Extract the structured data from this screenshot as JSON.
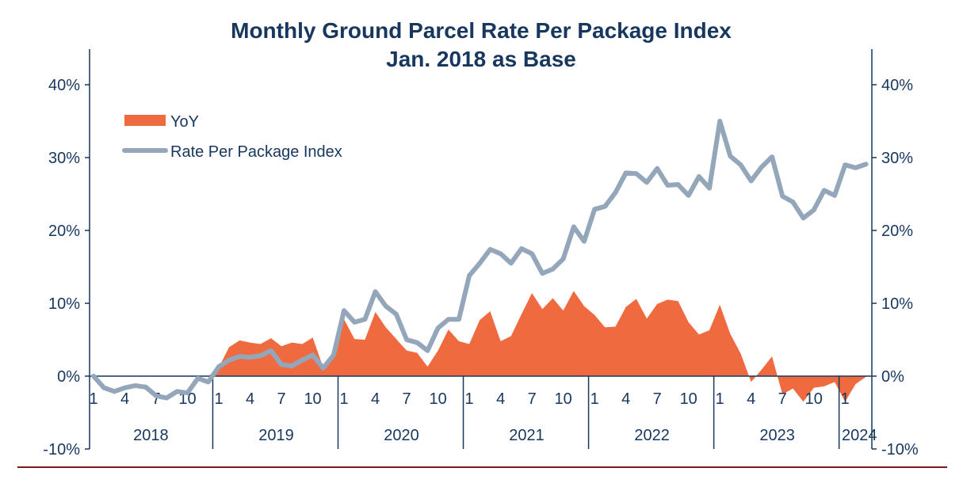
{
  "chart_data": {
    "type": "area+line",
    "title": "Monthly Ground Parcel Rate Per Package Index",
    "subtitle": "Jan. 2018 as Base",
    "ylim": [
      -10,
      40
    ],
    "yticks": [
      "-10%",
      "0%",
      "10%",
      "20%",
      "30%",
      "40%"
    ],
    "ytick_values": [
      -10,
      0,
      10,
      20,
      30,
      40
    ],
    "years": [
      "2018",
      "2019",
      "2020",
      "2021",
      "2022",
      "2023",
      "2024"
    ],
    "month_ticks": [
      "1",
      "4",
      "7",
      "10"
    ],
    "legend_placement": "top-left",
    "colors": {
      "yoy": "#f06a40",
      "index": "#94a7ba",
      "axis": "#17375e",
      "footer_rule": "#7a1a1a"
    },
    "x_start": "2018-01",
    "x_end": "2024-03",
    "series": [
      {
        "name": "YoY",
        "kind": "area",
        "values": [
          null,
          null,
          null,
          null,
          null,
          null,
          null,
          null,
          null,
          null,
          null,
          null,
          1.2,
          4.0,
          4.9,
          4.6,
          4.4,
          5.2,
          4.1,
          4.6,
          4.4,
          5.3,
          1.2,
          3.0,
          7.8,
          5.1,
          5.0,
          8.8,
          6.7,
          5.1,
          3.5,
          3.2,
          1.3,
          3.5,
          6.4,
          4.8,
          4.4,
          7.7,
          8.9,
          4.8,
          5.5,
          8.5,
          11.4,
          9.2,
          10.7,
          9.0,
          11.7,
          9.6,
          8.4,
          6.7,
          6.8,
          9.5,
          10.6,
          7.9,
          9.9,
          10.5,
          10.3,
          7.4,
          5.7,
          6.3,
          9.8,
          5.8,
          3.1,
          -0.8,
          0.9,
          2.7,
          -2.5,
          -1.7,
          -3.5,
          -1.6,
          -1.4,
          -0.8,
          -3.5,
          -1.1,
          -0.1
        ]
      },
      {
        "name": "Rate Per Package Index",
        "kind": "line",
        "values": [
          0,
          -1.6,
          -2.1,
          -1.6,
          -1.3,
          -1.5,
          -2.7,
          -3.0,
          -2.1,
          -2.3,
          -0.3,
          -0.8,
          1.3,
          2.2,
          2.7,
          2.6,
          2.8,
          3.5,
          1.6,
          1.4,
          2.2,
          2.9,
          1.1,
          2.9,
          9.0,
          7.4,
          7.8,
          11.6,
          9.6,
          8.5,
          5.0,
          4.6,
          3.5,
          6.6,
          7.8,
          7.8,
          13.8,
          15.5,
          17.4,
          16.8,
          15.5,
          17.5,
          16.8,
          14.1,
          14.7,
          16.1,
          20.5,
          18.5,
          22.9,
          23.3,
          25.2,
          27.9,
          27.8,
          26.6,
          28.5,
          26.2,
          26.3,
          24.8,
          27.4,
          25.8,
          35.0,
          30.2,
          29.0,
          26.8,
          28.7,
          30.1,
          24.7,
          23.9,
          21.7,
          22.8,
          25.5,
          24.8,
          29.0,
          28.6,
          29.1
        ]
      }
    ]
  }
}
